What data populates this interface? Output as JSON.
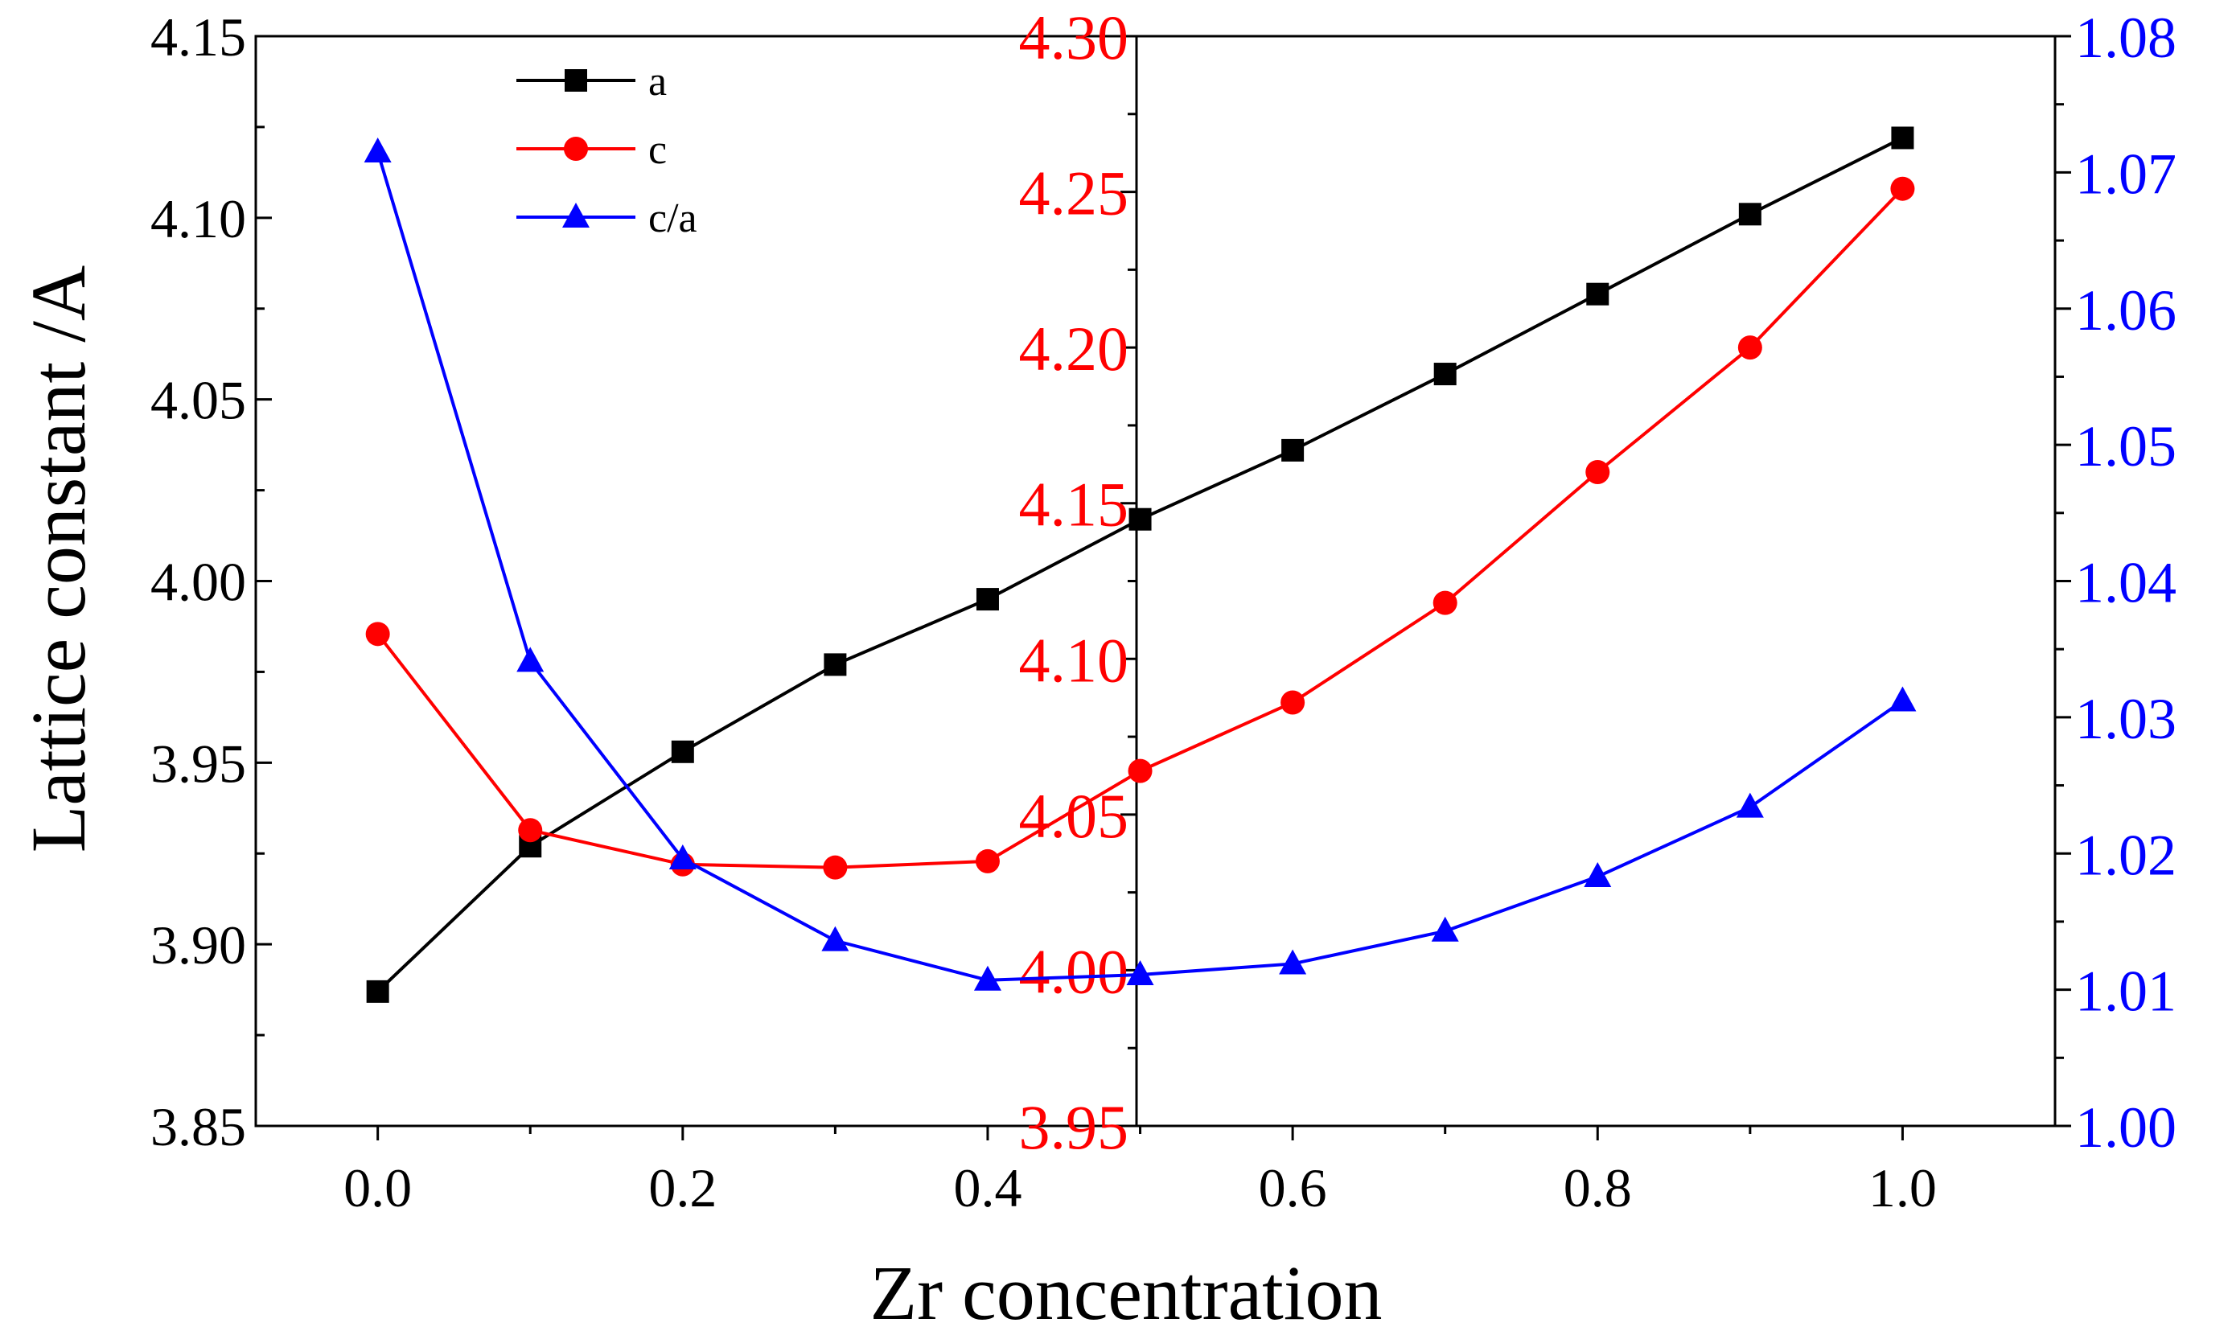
{
  "chart_data": {
    "type": "line",
    "title": "",
    "xlabel": "Zr concentration",
    "ylabel": "Lattice constant /A",
    "x": [
      0.0,
      0.1,
      0.2,
      0.3,
      0.4,
      0.5,
      0.6,
      0.7,
      0.8,
      0.9,
      1.0
    ],
    "xlim": [
      -0.08,
      1.1
    ],
    "x_ticks": [
      "0.0",
      "0.2",
      "0.4",
      "0.6",
      "0.8",
      "1.0"
    ],
    "axes": {
      "left": {
        "ylim": [
          3.85,
          4.15
        ],
        "ticks": [
          "3.85",
          "3.90",
          "3.95",
          "4.00",
          "4.05",
          "4.10",
          "4.15"
        ],
        "color": "#000000"
      },
      "middle": {
        "ylim": [
          3.95,
          4.3
        ],
        "ticks": [
          "3.95",
          "4.00",
          "4.05",
          "4.10",
          "4.15",
          "4.20",
          "4.25",
          "4.30"
        ],
        "color": "#ff0000"
      },
      "right": {
        "ylim": [
          1.0,
          1.08
        ],
        "ticks": [
          "1.00",
          "1.01",
          "1.02",
          "1.03",
          "1.04",
          "1.05",
          "1.06",
          "1.07",
          "1.08"
        ],
        "color": "#0000ff"
      }
    },
    "series": [
      {
        "name": "a",
        "axis": "left",
        "marker": "square",
        "color": "#000000",
        "values": [
          3.887,
          3.927,
          3.953,
          3.977,
          3.995,
          4.017,
          4.036,
          4.057,
          4.079,
          4.101,
          4.122
        ]
      },
      {
        "name": "c",
        "axis": "middle",
        "marker": "circle",
        "color": "#ff0000",
        "values": [
          4.108,
          4.045,
          4.034,
          4.033,
          4.035,
          4.064,
          4.086,
          4.118,
          4.16,
          4.2,
          4.251
        ]
      },
      {
        "name": "c/a",
        "axis": "right",
        "marker": "triangle",
        "color": "#0000ff",
        "values": [
          1.0715,
          1.0341,
          1.0196,
          1.0136,
          1.0107,
          1.0111,
          1.0119,
          1.0143,
          1.0183,
          1.0234,
          1.0312
        ]
      }
    ],
    "legend": {
      "position": "top-left",
      "entries": [
        "a",
        "c",
        "c/a"
      ]
    },
    "grid": false
  }
}
